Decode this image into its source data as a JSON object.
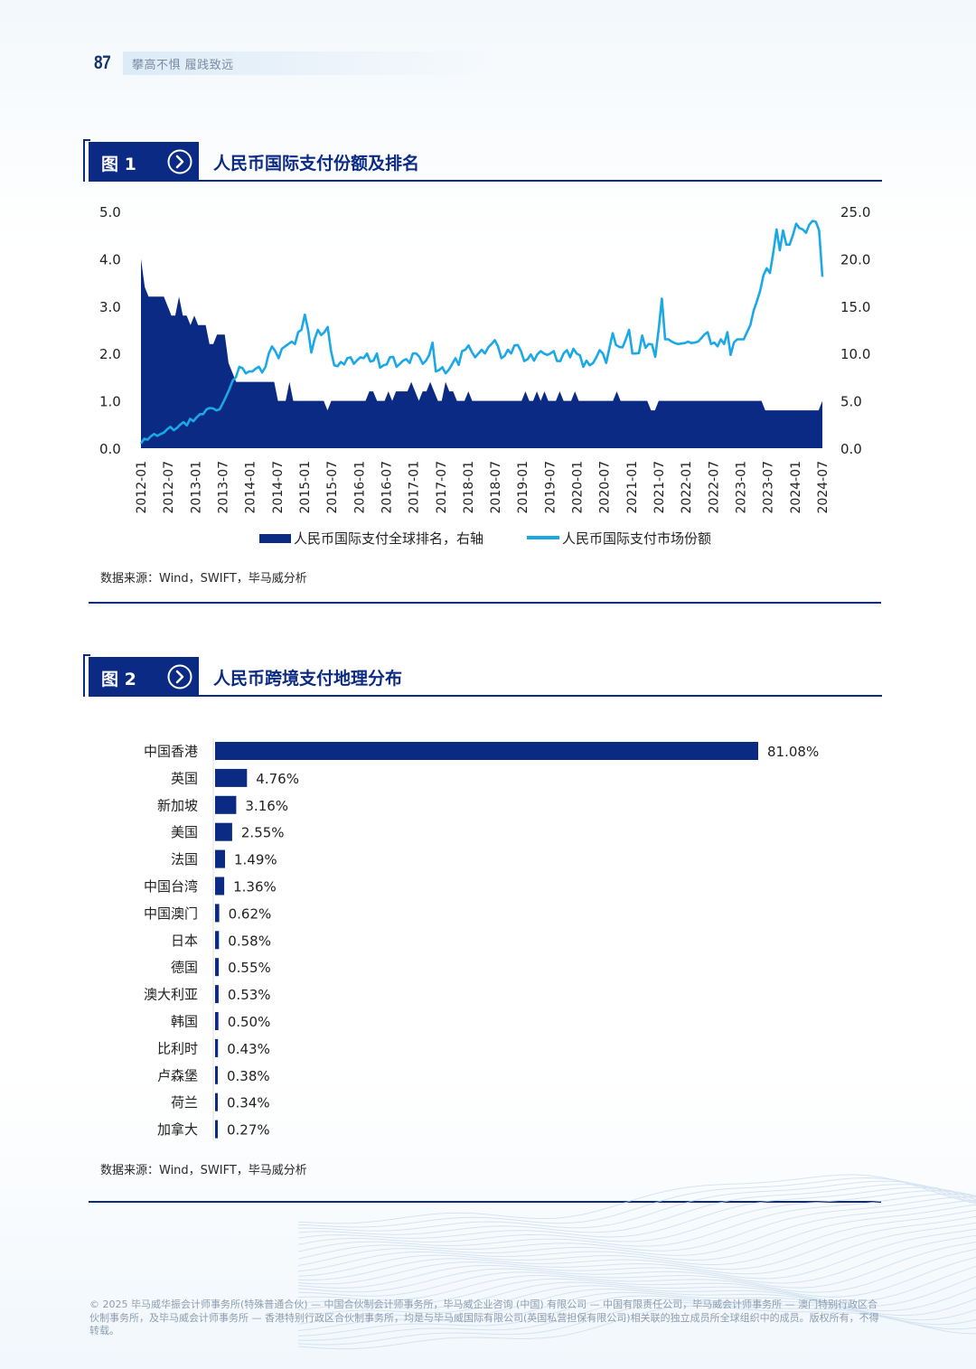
{
  "header": {
    "page_number": "87",
    "subtitle": "攀高不惧 履践致远"
  },
  "figures": [
    {
      "label": "图 1",
      "title": "人民币国际支付份额及排名",
      "source": "数据来源：Wind，SWIFT，毕马威分析"
    },
    {
      "label": "图 2",
      "title": "人民币跨境支付地理分布",
      "source": "数据来源：Wind，SWIFT，毕马威分析"
    }
  ],
  "footer": "© 2025 毕马威华振会计师事务所(特殊普通合伙) — 中国合伙制会计师事务所，毕马威企业咨询 (中国) 有限公司 — 中国有限责任公司，毕马威会计师事务所 — 澳门特别行政区合伙制事务所，及毕马威会计师事务所 — 香港特别行政区合伙制事务所，均是与毕马威国际有限公司(英国私营担保有限公司)相关联的独立成员所全球组织中的成员。版权所有，不得转载。",
  "colors": {
    "navy": "#0b2a84",
    "sky": "#1aa8e6"
  },
  "chart_data": [
    {
      "type": "area+line",
      "title": "人民币国际支付份额及排名",
      "x_tick_labels": [
        "2012-01",
        "2012-07",
        "2013-01",
        "2013-07",
        "2014-01",
        "2014-07",
        "2015-01",
        "2015-07",
        "2016-01",
        "2016-07",
        "2017-01",
        "2017-07",
        "2018-01",
        "2018-07",
        "2019-01",
        "2019-07",
        "2020-01",
        "2020-07",
        "2021-01",
        "2021-07",
        "2022-01",
        "2022-07",
        "2023-01",
        "2023-07",
        "2024-01",
        "2024-07"
      ],
      "left_axis": {
        "range": [
          0,
          5
        ],
        "tick_labels": [
          "0.0",
          "1.0",
          "2.0",
          "3.0",
          "4.0",
          "5.0"
        ]
      },
      "right_axis": {
        "range": [
          0,
          25
        ],
        "tick_labels": [
          "0.0",
          "5.0",
          "10.0",
          "15.0",
          "20.0",
          "25.0"
        ]
      },
      "series": [
        {
          "name": "人民币国际支付全球排名，右轴",
          "kind": "area",
          "axis": "right",
          "color": "#0b2a84",
          "values": [
            20,
            17,
            16,
            16,
            16,
            16,
            16,
            15,
            14,
            14,
            16,
            14,
            14,
            13,
            14,
            13,
            13,
            13,
            11,
            11,
            12,
            12,
            12,
            9,
            8,
            7,
            7,
            7,
            7,
            7,
            7,
            7,
            7,
            7,
            7,
            7,
            5,
            5,
            5,
            7,
            5,
            5,
            5,
            5,
            5,
            5,
            5,
            5,
            5,
            4,
            5,
            5,
            5,
            5,
            5,
            5,
            5,
            5,
            5,
            5,
            6,
            6,
            5,
            5,
            5,
            6,
            5,
            6,
            6,
            6,
            6,
            7,
            6,
            5,
            6,
            6,
            7,
            6,
            5,
            5,
            7,
            6,
            6,
            5,
            5,
            5,
            6,
            5,
            5,
            5,
            5,
            5,
            5,
            5,
            5,
            5,
            5,
            5,
            5,
            5,
            5,
            6,
            5,
            5,
            6,
            5,
            6,
            5,
            5,
            5,
            6,
            5,
            5,
            5,
            6,
            5,
            5,
            5,
            5,
            5,
            5,
            5,
            5,
            5,
            5,
            6,
            5,
            5,
            5,
            5,
            5,
            5,
            5,
            5,
            4,
            4,
            5,
            5,
            5,
            5,
            5,
            5,
            5,
            5,
            5,
            5,
            5,
            5,
            5,
            5,
            5,
            5,
            5,
            5,
            5,
            5,
            5,
            5,
            5,
            5,
            5,
            5,
            5,
            5,
            4,
            4,
            4,
            4,
            4,
            4,
            4,
            4,
            4,
            4,
            4,
            4,
            4,
            4,
            4,
            5
          ]
        },
        {
          "name": "人民币国际支付市场份额",
          "kind": "line",
          "axis": "left",
          "color": "#1aa8e6",
          "values": [
            0.1,
            0.2,
            0.18,
            0.25,
            0.3,
            0.26,
            0.3,
            0.33,
            0.4,
            0.45,
            0.38,
            0.43,
            0.5,
            0.55,
            0.48,
            0.62,
            0.57,
            0.65,
            0.72,
            0.72,
            0.82,
            0.85,
            0.84,
            0.8,
            0.82,
            0.95,
            1.1,
            1.25,
            1.43,
            1.5,
            1.72,
            1.69,
            1.58,
            1.62,
            1.62,
            1.68,
            1.72,
            1.6,
            1.72,
            2.0,
            2.15,
            2.05,
            1.9,
            2.1,
            2.15,
            2.2,
            2.25,
            2.2,
            2.45,
            2.5,
            2.82,
            2.5,
            2.02,
            2.3,
            2.5,
            2.39,
            2.45,
            2.56,
            2.05,
            1.75,
            1.73,
            1.82,
            1.77,
            1.9,
            1.92,
            1.78,
            1.86,
            1.92,
            1.9,
            2.0,
            1.83,
            1.85,
            2.0,
            1.7,
            1.75,
            1.77,
            1.92,
            1.93,
            1.72,
            1.78,
            1.85,
            1.88,
            1.8,
            2.0,
            2.0,
            1.93,
            1.78,
            1.85,
            1.97,
            2.23,
            1.62,
            1.65,
            1.71,
            1.58,
            1.66,
            1.78,
            1.9,
            1.76,
            2.05,
            2.08,
            2.17,
            2.03,
            1.92,
            2.0,
            2.08,
            2.0,
            2.13,
            2.2,
            2.28,
            2.15,
            1.9,
            1.95,
            2.08,
            2.0,
            2.17,
            2.18,
            2.05,
            1.84,
            1.88,
            1.98,
            1.85,
            1.98,
            2.05,
            2.0,
            1.97,
            2.0,
            2.05,
            1.84,
            1.84,
            2.0,
            2.07,
            1.92,
            2.1,
            2.0,
            1.96,
            1.72,
            1.85,
            1.75,
            1.8,
            1.92,
            2.07,
            2.0,
            1.8,
            2.12,
            2.43,
            2.18,
            2.14,
            2.13,
            2.3,
            2.5,
            2.0,
            2.0,
            2.01,
            2.38,
            2.12,
            2.2,
            2.19,
            1.93,
            2.5,
            3.16,
            2.3,
            2.3,
            2.25,
            2.22,
            2.2,
            2.21,
            2.22,
            2.25,
            2.22,
            2.23,
            2.25,
            2.32,
            2.4,
            2.45,
            2.2,
            2.23,
            2.15,
            2.3,
            2.2,
            2.45,
            1.97,
            2.23,
            2.3,
            2.3,
            2.3,
            2.45,
            2.6,
            2.9,
            3.1,
            3.32,
            3.65,
            3.8,
            3.7,
            4.12,
            4.62,
            4.18,
            4.6,
            4.3,
            4.3,
            4.5,
            4.74,
            4.65,
            4.62,
            4.55,
            4.72,
            4.8,
            4.78,
            4.6,
            3.62
          ]
        }
      ]
    },
    {
      "type": "bar",
      "orientation": "horizontal",
      "title": "人民币跨境支付地理分布",
      "categories": [
        "中国香港",
        "英国",
        "新加坡",
        "美国",
        "法国",
        "中国台湾",
        "中国澳门",
        "日本",
        "德国",
        "澳大利亚",
        "韩国",
        "比利时",
        "卢森堡",
        "荷兰",
        "加拿大"
      ],
      "values": [
        81.08,
        4.76,
        3.16,
        2.55,
        1.49,
        1.36,
        0.62,
        0.58,
        0.55,
        0.53,
        0.5,
        0.43,
        0.38,
        0.34,
        0.27
      ],
      "value_labels": [
        "81.08%",
        "4.76%",
        "3.16%",
        "2.55%",
        "1.49%",
        "1.36%",
        "0.62%",
        "0.58%",
        "0.55%",
        "0.53%",
        "0.50%",
        "0.43%",
        "0.38%",
        "0.34%",
        "0.27%"
      ],
      "unit": "%"
    }
  ]
}
